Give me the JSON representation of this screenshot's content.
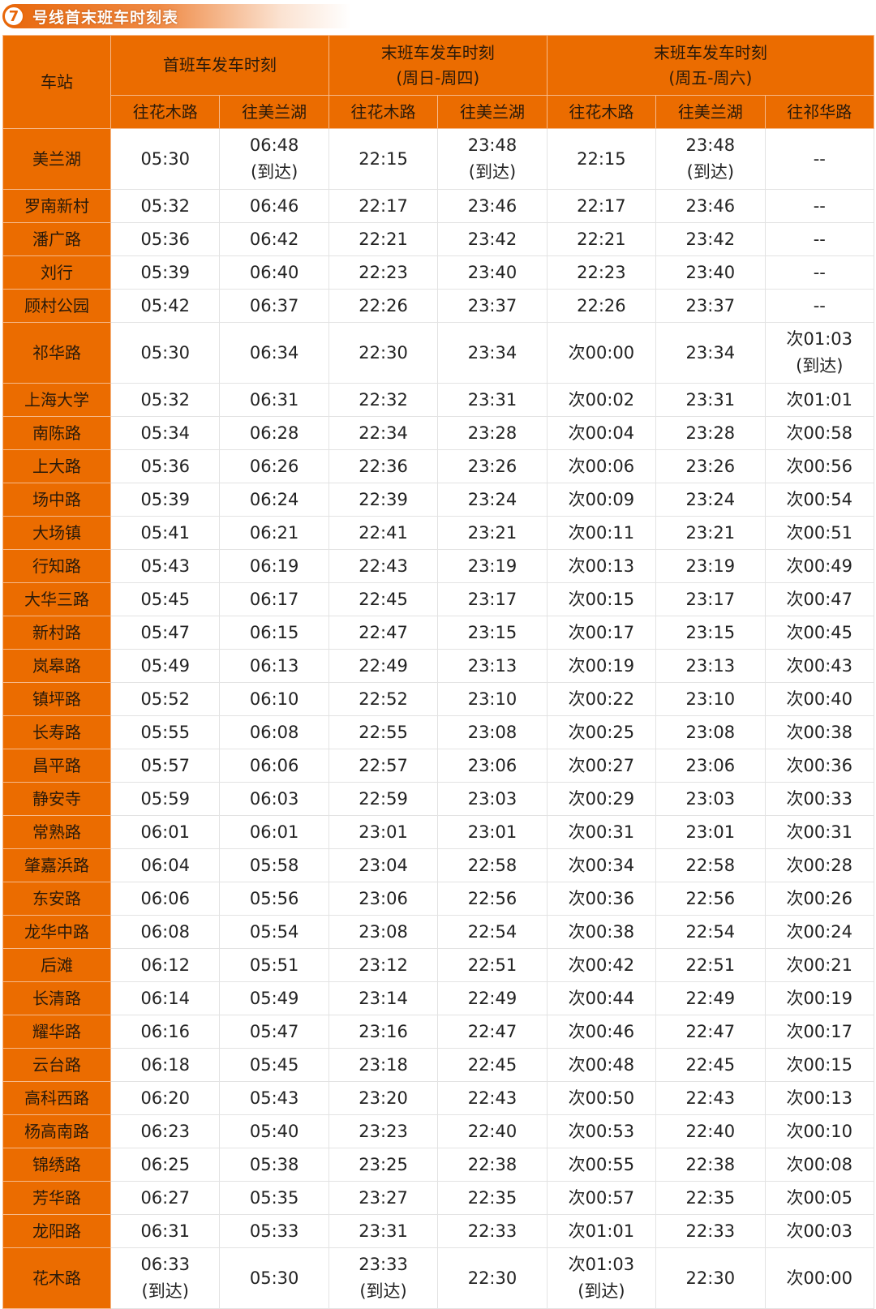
{
  "title": {
    "number": "7",
    "text": "号线首末班车时刻表"
  },
  "colors": {
    "accent": "#eb6c00"
  },
  "header": {
    "station": "车站",
    "groups": [
      "首班车发车时刻",
      "末班车发车时刻\n(周日-周四)",
      "末班车发车时刻\n(周五-周六)"
    ],
    "directions": [
      "往花木路",
      "往美兰湖",
      "往花木路",
      "往美兰湖",
      "往花木路",
      "往美兰湖",
      "往祁华路"
    ]
  },
  "rows": [
    [
      "美兰湖",
      "05:30",
      "06:48\n(到达)",
      "22:15",
      "23:48\n(到达)",
      "22:15",
      "23:48\n(到达)",
      "--"
    ],
    [
      "罗南新村",
      "05:32",
      "06:46",
      "22:17",
      "23:46",
      "22:17",
      "23:46",
      "--"
    ],
    [
      "潘广路",
      "05:36",
      "06:42",
      "22:21",
      "23:42",
      "22:21",
      "23:42",
      "--"
    ],
    [
      "刘行",
      "05:39",
      "06:40",
      "22:23",
      "23:40",
      "22:23",
      "23:40",
      "--"
    ],
    [
      "顾村公园",
      "05:42",
      "06:37",
      "22:26",
      "23:37",
      "22:26",
      "23:37",
      "--"
    ],
    [
      "祁华路",
      "05:30",
      "06:34",
      "22:30",
      "23:34",
      "次00:00",
      "23:34",
      "次01:03\n(到达)"
    ],
    [
      "上海大学",
      "05:32",
      "06:31",
      "22:32",
      "23:31",
      "次00:02",
      "23:31",
      "次01:01"
    ],
    [
      "南陈路",
      "05:34",
      "06:28",
      "22:34",
      "23:28",
      "次00:04",
      "23:28",
      "次00:58"
    ],
    [
      "上大路",
      "05:36",
      "06:26",
      "22:36",
      "23:26",
      "次00:06",
      "23:26",
      "次00:56"
    ],
    [
      "场中路",
      "05:39",
      "06:24",
      "22:39",
      "23:24",
      "次00:09",
      "23:24",
      "次00:54"
    ],
    [
      "大场镇",
      "05:41",
      "06:21",
      "22:41",
      "23:21",
      "次00:11",
      "23:21",
      "次00:51"
    ],
    [
      "行知路",
      "05:43",
      "06:19",
      "22:43",
      "23:19",
      "次00:13",
      "23:19",
      "次00:49"
    ],
    [
      "大华三路",
      "05:45",
      "06:17",
      "22:45",
      "23:17",
      "次00:15",
      "23:17",
      "次00:47"
    ],
    [
      "新村路",
      "05:47",
      "06:15",
      "22:47",
      "23:15",
      "次00:17",
      "23:15",
      "次00:45"
    ],
    [
      "岚皋路",
      "05:49",
      "06:13",
      "22:49",
      "23:13",
      "次00:19",
      "23:13",
      "次00:43"
    ],
    [
      "镇坪路",
      "05:52",
      "06:10",
      "22:52",
      "23:10",
      "次00:22",
      "23:10",
      "次00:40"
    ],
    [
      "长寿路",
      "05:55",
      "06:08",
      "22:55",
      "23:08",
      "次00:25",
      "23:08",
      "次00:38"
    ],
    [
      "昌平路",
      "05:57",
      "06:06",
      "22:57",
      "23:06",
      "次00:27",
      "23:06",
      "次00:36"
    ],
    [
      "静安寺",
      "05:59",
      "06:03",
      "22:59",
      "23:03",
      "次00:29",
      "23:03",
      "次00:33"
    ],
    [
      "常熟路",
      "06:01",
      "06:01",
      "23:01",
      "23:01",
      "次00:31",
      "23:01",
      "次00:31"
    ],
    [
      "肇嘉浜路",
      "06:04",
      "05:58",
      "23:04",
      "22:58",
      "次00:34",
      "22:58",
      "次00:28"
    ],
    [
      "东安路",
      "06:06",
      "05:56",
      "23:06",
      "22:56",
      "次00:36",
      "22:56",
      "次00:26"
    ],
    [
      "龙华中路",
      "06:08",
      "05:54",
      "23:08",
      "22:54",
      "次00:38",
      "22:54",
      "次00:24"
    ],
    [
      "后滩",
      "06:12",
      "05:51",
      "23:12",
      "22:51",
      "次00:42",
      "22:51",
      "次00:21"
    ],
    [
      "长清路",
      "06:14",
      "05:49",
      "23:14",
      "22:49",
      "次00:44",
      "22:49",
      "次00:19"
    ],
    [
      "耀华路",
      "06:16",
      "05:47",
      "23:16",
      "22:47",
      "次00:46",
      "22:47",
      "次00:17"
    ],
    [
      "云台路",
      "06:18",
      "05:45",
      "23:18",
      "22:45",
      "次00:48",
      "22:45",
      "次00:15"
    ],
    [
      "高科西路",
      "06:20",
      "05:43",
      "23:20",
      "22:43",
      "次00:50",
      "22:43",
      "次00:13"
    ],
    [
      "杨高南路",
      "06:23",
      "05:40",
      "23:23",
      "22:40",
      "次00:53",
      "22:40",
      "次00:10"
    ],
    [
      "锦绣路",
      "06:25",
      "05:38",
      "23:25",
      "22:38",
      "次00:55",
      "22:38",
      "次00:08"
    ],
    [
      "芳华路",
      "06:27",
      "05:35",
      "23:27",
      "22:35",
      "次00:57",
      "22:35",
      "次00:05"
    ],
    [
      "龙阳路",
      "06:31",
      "05:33",
      "23:31",
      "22:33",
      "次01:01",
      "22:33",
      "次00:03"
    ],
    [
      "花木路",
      "06:33\n(到达)",
      "05:30",
      "23:33\n(到达)",
      "22:30",
      "次01:03\n(到达)",
      "22:30",
      "次00:00"
    ]
  ]
}
